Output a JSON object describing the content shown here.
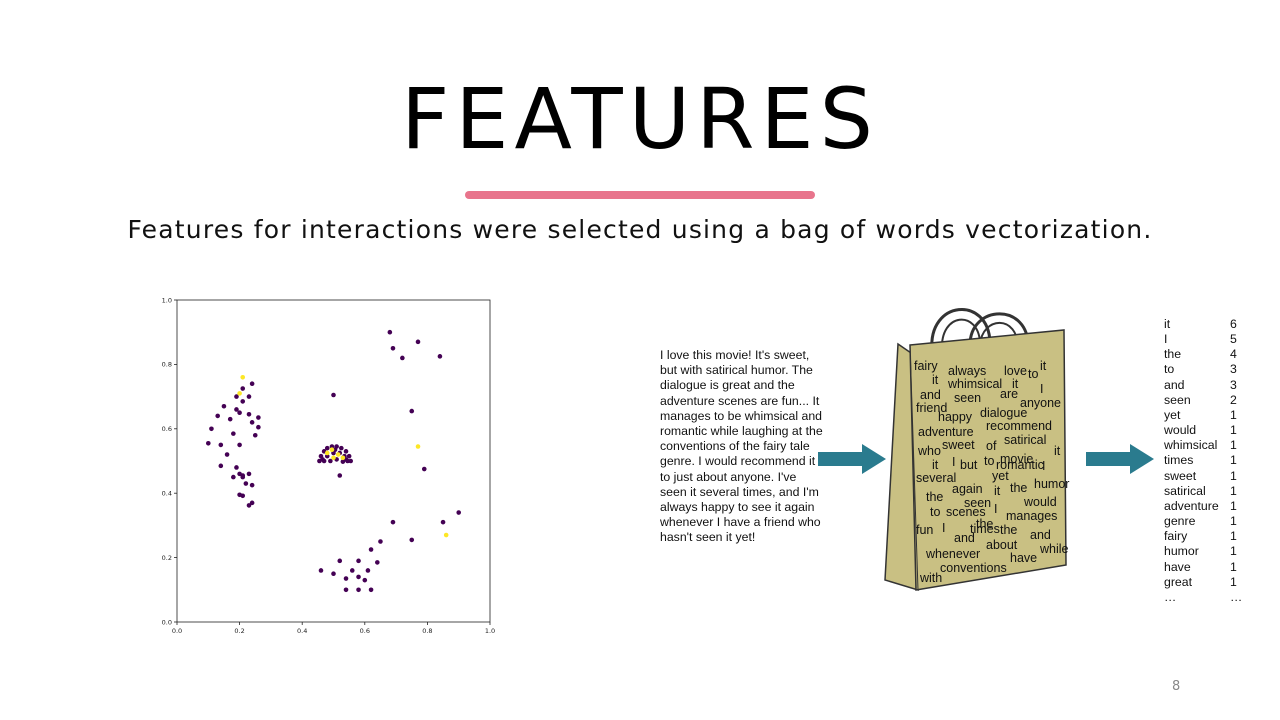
{
  "slide": {
    "title": "FEATURES",
    "subtitle": "Features for interactions were selected using a bag of words vectorization.",
    "page_number": "8",
    "accent_color": "#e8748c"
  },
  "review_text": "I love this movie! It's sweet, but with satirical humor. The dialogue is great and the adventure scenes are fun... It manages to be whimsical and romantic while laughing at the conventions of the fairy tale genre. I would recommend it to just about anyone. I've seen it several times, and I'm always happy to see it again whenever I have a friend who hasn't seen it yet!",
  "bag_words": [
    "fairy",
    "always",
    "love",
    "to",
    "it",
    "it",
    "whimsical",
    "it",
    "I",
    "and",
    "seen",
    "are",
    "anyone",
    "friend",
    "happy",
    "dialogue",
    "adventure",
    "recommend",
    "satirical",
    "who",
    "sweet",
    "of",
    "movie",
    "it",
    "it",
    "I",
    "but",
    "to",
    "romantic",
    "I",
    "several",
    "yet",
    "again",
    "it",
    "the",
    "humor",
    "the",
    "seen",
    "would",
    "to",
    "scenes",
    "I",
    "the",
    "manages",
    "fun",
    "I",
    "and",
    "the",
    "times",
    "and",
    "about",
    "while",
    "whenever",
    "have",
    "conventions",
    "with"
  ],
  "word_counts": [
    {
      "word": "it",
      "count": "6"
    },
    {
      "word": "I",
      "count": "5"
    },
    {
      "word": "the",
      "count": "4"
    },
    {
      "word": "to",
      "count": "3"
    },
    {
      "word": "and",
      "count": "3"
    },
    {
      "word": "seen",
      "count": "2"
    },
    {
      "word": "yet",
      "count": "1"
    },
    {
      "word": "would",
      "count": "1"
    },
    {
      "word": "whimsical",
      "count": "1"
    },
    {
      "word": "times",
      "count": "1"
    },
    {
      "word": "sweet",
      "count": "1"
    },
    {
      "word": "satirical",
      "count": "1"
    },
    {
      "word": "adventure",
      "count": "1"
    },
    {
      "word": "genre",
      "count": "1"
    },
    {
      "word": "fairy",
      "count": "1"
    },
    {
      "word": "humor",
      "count": "1"
    },
    {
      "word": "have",
      "count": "1"
    },
    {
      "word": "great",
      "count": "1"
    },
    {
      "word": "…",
      "count": "…"
    }
  ],
  "colors": {
    "arrow": "#2a7b8e",
    "bag_fill": "#c9c083",
    "bag_stroke": "#333333"
  },
  "chart_data": {
    "type": "scatter",
    "title": "",
    "xlabel": "",
    "ylabel": "",
    "xlim": [
      0.0,
      1.0
    ],
    "ylim": [
      0.0,
      1.0
    ],
    "x_ticks": [
      "0.0",
      "0.2",
      "0.4",
      "0.6",
      "0.8",
      "1.0"
    ],
    "y_ticks": [
      "0.0",
      "0.2",
      "0.4",
      "0.6",
      "0.8",
      "1.0"
    ],
    "grid": false,
    "series": [
      {
        "color": "#440154",
        "points": [
          [
            0.24,
            0.74
          ],
          [
            0.21,
            0.725
          ],
          [
            0.19,
            0.7
          ],
          [
            0.23,
            0.7
          ],
          [
            0.21,
            0.685
          ],
          [
            0.15,
            0.67
          ],
          [
            0.19,
            0.66
          ],
          [
            0.2,
            0.65
          ],
          [
            0.23,
            0.645
          ],
          [
            0.26,
            0.635
          ],
          [
            0.13,
            0.64
          ],
          [
            0.17,
            0.63
          ],
          [
            0.24,
            0.62
          ],
          [
            0.26,
            0.605
          ],
          [
            0.11,
            0.6
          ],
          [
            0.18,
            0.585
          ],
          [
            0.25,
            0.58
          ],
          [
            0.14,
            0.55
          ],
          [
            0.2,
            0.55
          ],
          [
            0.1,
            0.555
          ],
          [
            0.16,
            0.52
          ],
          [
            0.14,
            0.485
          ],
          [
            0.19,
            0.48
          ],
          [
            0.2,
            0.46
          ],
          [
            0.21,
            0.455
          ],
          [
            0.23,
            0.46
          ],
          [
            0.21,
            0.45
          ],
          [
            0.18,
            0.45
          ],
          [
            0.24,
            0.425
          ],
          [
            0.2,
            0.395
          ],
          [
            0.21,
            0.392
          ],
          [
            0.22,
            0.43
          ],
          [
            0.24,
            0.37
          ],
          [
            0.23,
            0.362
          ],
          [
            0.5,
            0.705
          ],
          [
            0.68,
            0.9
          ],
          [
            0.69,
            0.85
          ],
          [
            0.72,
            0.82
          ],
          [
            0.77,
            0.87
          ],
          [
            0.84,
            0.825
          ],
          [
            0.75,
            0.655
          ],
          [
            0.79,
            0.475
          ],
          [
            0.52,
            0.455
          ],
          [
            0.85,
            0.31
          ],
          [
            0.9,
            0.34
          ],
          [
            0.69,
            0.31
          ],
          [
            0.75,
            0.255
          ],
          [
            0.46,
            0.16
          ],
          [
            0.5,
            0.15
          ],
          [
            0.52,
            0.19
          ],
          [
            0.54,
            0.135
          ],
          [
            0.56,
            0.16
          ],
          [
            0.58,
            0.19
          ],
          [
            0.58,
            0.14
          ],
          [
            0.6,
            0.13
          ],
          [
            0.61,
            0.16
          ],
          [
            0.62,
            0.225
          ],
          [
            0.65,
            0.25
          ],
          [
            0.64,
            0.185
          ],
          [
            0.54,
            0.1
          ],
          [
            0.58,
            0.1
          ],
          [
            0.62,
            0.1
          ],
          [
            0.455,
            0.5
          ],
          [
            0.46,
            0.515
          ],
          [
            0.47,
            0.53
          ],
          [
            0.48,
            0.54
          ],
          [
            0.495,
            0.545
          ],
          [
            0.51,
            0.545
          ],
          [
            0.525,
            0.54
          ],
          [
            0.54,
            0.53
          ],
          [
            0.55,
            0.515
          ],
          [
            0.555,
            0.5
          ],
          [
            0.47,
            0.5
          ],
          [
            0.48,
            0.515
          ],
          [
            0.5,
            0.525
          ],
          [
            0.52,
            0.525
          ],
          [
            0.535,
            0.515
          ],
          [
            0.545,
            0.5
          ],
          [
            0.49,
            0.5
          ],
          [
            0.51,
            0.505
          ],
          [
            0.53,
            0.498
          ],
          [
            0.465,
            0.505
          ],
          [
            0.505,
            0.535
          ],
          [
            0.54,
            0.505
          ]
        ]
      },
      {
        "color": "#fde725",
        "points": [
          [
            0.21,
            0.76
          ],
          [
            0.2,
            0.71
          ],
          [
            0.77,
            0.545
          ],
          [
            0.86,
            0.27
          ],
          [
            0.48,
            0.525
          ],
          [
            0.5,
            0.51
          ],
          [
            0.515,
            0.52
          ],
          [
            0.53,
            0.51
          ],
          [
            0.495,
            0.535
          ]
        ]
      }
    ]
  }
}
